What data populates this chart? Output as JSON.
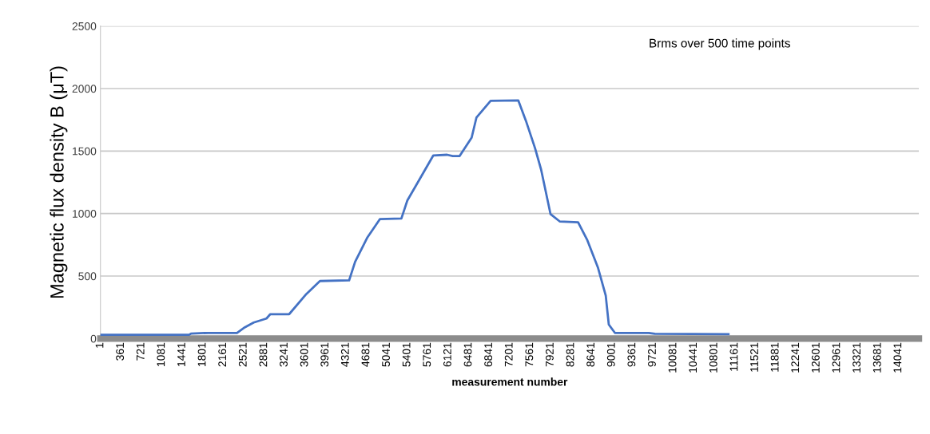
{
  "chart_data": {
    "type": "line",
    "xlabel": "measurement number",
    "ylabel": "Magnetic flux density B (μT)",
    "annotations": [
      "Brms over 500 time points"
    ],
    "series": [
      {
        "color": "#4472c4",
        "x": [
          1,
          1560,
          1600,
          1897,
          2403,
          2543,
          2698,
          2922,
          2990,
          3322,
          3625,
          3863,
          4376,
          4482,
          4699,
          4917,
          5296,
          5401,
          5620,
          5858,
          6100,
          6200,
          6321,
          6532,
          6616,
          6866,
          7352,
          7487,
          7648,
          7754,
          7920,
          8081,
          8405,
          8568,
          8756,
          8891,
          8945,
          9053,
          9647,
          9755,
          11051
        ],
        "values": [
          30,
          30,
          40,
          45,
          45,
          90,
          128,
          160,
          195,
          195,
          357,
          460,
          465,
          614,
          810,
          955,
          960,
          1105,
          1277,
          1465,
          1470,
          1460,
          1460,
          1607,
          1767,
          1902,
          1905,
          1742,
          1522,
          1352,
          995,
          937,
          930,
          786,
          565,
          344,
          112,
          45,
          45,
          38,
          35
        ]
      }
    ],
    "xlim": [
      1,
      14400
    ],
    "xticks": [
      1,
      361,
      721,
      1081,
      1441,
      1801,
      2161,
      2521,
      2881,
      3241,
      3601,
      3961,
      4321,
      4681,
      5041,
      5401,
      5761,
      6121,
      6481,
      6841,
      7201,
      7561,
      7921,
      8281,
      8641,
      9001,
      9361,
      9721,
      10081,
      10441,
      10801,
      11161,
      11521,
      11881,
      12241,
      12601,
      12961,
      13321,
      13681,
      14041
    ],
    "ylim": [
      0,
      2500
    ],
    "yticks": [
      0,
      500,
      1000,
      1500,
      2000,
      2500
    ],
    "grid": "y",
    "legend": false,
    "marker": "none",
    "line_style": "solid"
  }
}
